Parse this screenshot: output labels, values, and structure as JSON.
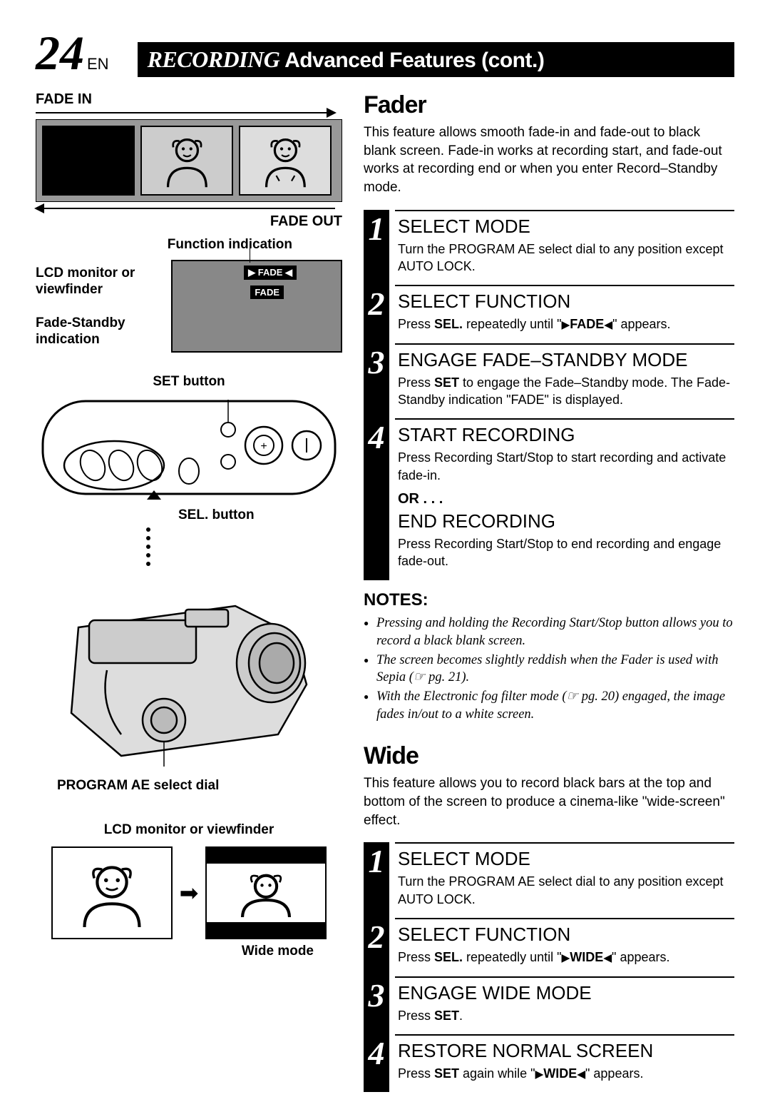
{
  "page": {
    "number": "24",
    "lang": "EN"
  },
  "header": {
    "recording": "RECORDING",
    "subtitle": "Advanced Features (cont.)"
  },
  "left": {
    "fade_in": "FADE IN",
    "fade_out": "FADE OUT",
    "function_indication": "Function indication",
    "lcd_or_vf": "LCD monitor or viewfinder",
    "fade_standby": "Fade-Standby indication",
    "fade_tag": "▶ FADE ◀",
    "fade_txt": "FADE",
    "set_button": "SET button",
    "sel_button": "SEL. button",
    "program_ae": "PROGRAM AE select dial",
    "lcd_or_vf2": "LCD monitor or viewfinder",
    "wide_mode": "Wide mode"
  },
  "fader": {
    "title": "Fader",
    "desc": "This feature allows smooth fade-in and fade-out to black blank screen. Fade-in works at recording start, and fade-out works at recording end or when you enter Record–Standby mode.",
    "steps": [
      {
        "n": "1",
        "h": "SELECT MODE",
        "b": "Turn the PROGRAM AE select dial to any position except AUTO LOCK."
      },
      {
        "n": "2",
        "h": "SELECT FUNCTION",
        "b": "Press <b>SEL.</b> repeatedly until \"<span class='tri'>▶</span><b>FADE</b><span class='tri'>◀</span>\" appears."
      },
      {
        "n": "3",
        "h": "ENGAGE FADE–STANDBY MODE",
        "b": "Press <b>SET</b> to engage the Fade–Standby mode. The Fade-Standby indication \"FADE\" is displayed."
      },
      {
        "n": "4",
        "h": "START RECORDING",
        "b": "Press Recording Start/Stop to start recording and activate fade-in."
      }
    ],
    "or": "OR . . .",
    "end": {
      "h": "END RECORDING",
      "b": "Press Recording Start/Stop to end recording and engage fade-out."
    },
    "notes_title": "NOTES:",
    "notes": [
      "Pressing and holding the Recording Start/Stop button allows you to record a black blank screen.",
      "The screen becomes slightly reddish when the Fader is used with Sepia (☞ pg. 21).",
      "With the Electronic fog filter mode (☞ pg. 20) engaged, the image fades in/out to a white screen."
    ]
  },
  "wide": {
    "title": "Wide",
    "desc": "This feature allows you to record black bars at the top and bottom of the screen to produce a cinema-like \"wide-screen\" effect.",
    "steps": [
      {
        "n": "1",
        "h": "SELECT MODE",
        "b": "Turn the PROGRAM AE select dial to any position except AUTO LOCK."
      },
      {
        "n": "2",
        "h": "SELECT FUNCTION",
        "b": "Press <b>SEL.</b> repeatedly until \"<span class='tri'>▶</span><b>WIDE</b><span class='tri'>◀</span>\" appears."
      },
      {
        "n": "3",
        "h": "ENGAGE WIDE MODE",
        "b": "Press <b>SET</b>."
      },
      {
        "n": "4",
        "h": "RESTORE NORMAL SCREEN",
        "b": "Press <b>SET</b> again while \"<span class='tri'>▶</span><b>WIDE</b><span class='tri'>◀</span>\" appears."
      }
    ]
  }
}
